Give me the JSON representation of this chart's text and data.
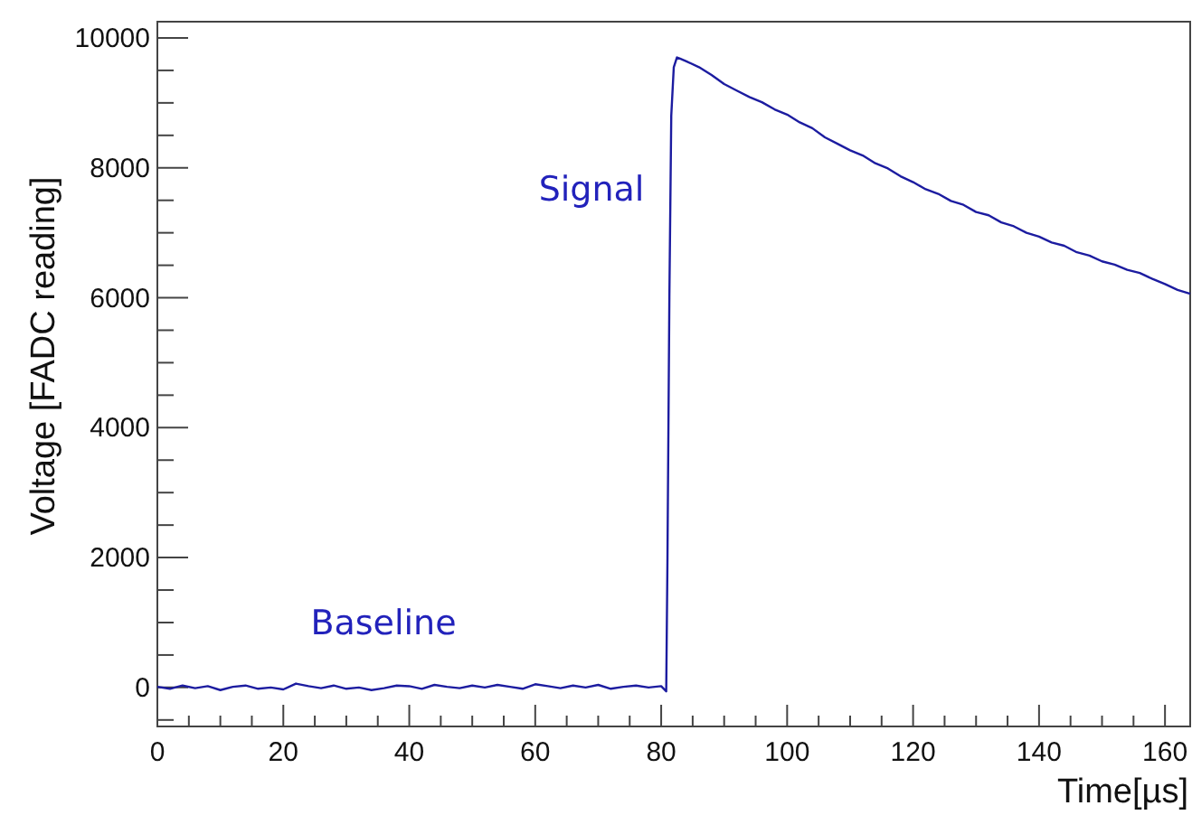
{
  "chart_data": {
    "type": "line",
    "xlabel": "Time[µs]",
    "ylabel": "Voltage [FADC reading]",
    "xlim": [
      0,
      164
    ],
    "ylim": [
      -600,
      10250
    ],
    "xticks": [
      0,
      {
        "value": 5,
        "label": null
      },
      {
        "value": 10,
        "label": null
      },
      {
        "value": 15,
        "label": null
      },
      20,
      {
        "value": 25,
        "label": null
      },
      {
        "value": 30,
        "label": null
      },
      {
        "value": 35,
        "label": null
      },
      40,
      {
        "value": 45,
        "label": null
      },
      {
        "value": 50,
        "label": null
      },
      {
        "value": 55,
        "label": null
      },
      60,
      {
        "value": 65,
        "label": null
      },
      {
        "value": 70,
        "label": null
      },
      {
        "value": 75,
        "label": null
      },
      80,
      {
        "value": 85,
        "label": null
      },
      {
        "value": 90,
        "label": null
      },
      {
        "value": 95,
        "label": null
      },
      100,
      {
        "value": 105,
        "label": null
      },
      {
        "value": 110,
        "label": null
      },
      {
        "value": 115,
        "label": null
      },
      120,
      {
        "value": 125,
        "label": null
      },
      {
        "value": 130,
        "label": null
      },
      {
        "value": 135,
        "label": null
      },
      140,
      {
        "value": 145,
        "label": null
      },
      {
        "value": 150,
        "label": null
      },
      {
        "value": 155,
        "label": null
      },
      160
    ],
    "yticks": [
      {
        "value": -500,
        "label": null
      },
      0,
      {
        "value": 500,
        "label": null
      },
      {
        "value": 1000,
        "label": null
      },
      {
        "value": 1500,
        "label": null
      },
      2000,
      {
        "value": 2500,
        "label": null
      },
      {
        "value": 3000,
        "label": null
      },
      {
        "value": 3500,
        "label": null
      },
      4000,
      {
        "value": 4500,
        "label": null
      },
      {
        "value": 5000,
        "label": null
      },
      {
        "value": 5500,
        "label": null
      },
      6000,
      {
        "value": 6500,
        "label": null
      },
      {
        "value": 7000,
        "label": null
      },
      {
        "value": 7500,
        "label": null
      },
      8000,
      {
        "value": 8500,
        "label": null
      },
      {
        "value": 9000,
        "label": null
      },
      {
        "value": 9500,
        "label": null
      },
      10000
    ],
    "grid": false,
    "marker": "none",
    "line_style": "solid",
    "annotations": [
      "Baseline",
      "Signal"
    ],
    "series": [
      {
        "color": "#1c1ca0",
        "x": [
          0,
          2,
          4,
          6,
          8,
          10,
          12,
          14,
          16,
          18,
          20,
          22,
          24,
          26,
          28,
          30,
          32,
          34,
          36,
          38,
          40,
          42,
          44,
          46,
          48,
          50,
          52,
          54,
          56,
          58,
          60,
          62,
          64,
          66,
          68,
          70,
          72,
          74,
          76,
          78,
          80,
          80.8,
          81,
          81.3,
          81.6,
          82,
          82.5,
          83,
          84,
          86,
          88,
          90,
          92,
          94,
          96,
          98,
          100,
          102,
          104,
          106,
          108,
          110,
          112,
          114,
          116,
          118,
          120,
          122,
          124,
          126,
          128,
          130,
          132,
          134,
          136,
          138,
          140,
          142,
          144,
          146,
          148,
          150,
          152,
          154,
          156,
          158,
          160,
          162,
          164
        ],
        "values": [
          10,
          -20,
          30,
          -10,
          20,
          -40,
          10,
          30,
          -20,
          0,
          -30,
          60,
          20,
          -10,
          30,
          -20,
          0,
          -40,
          -10,
          30,
          20,
          -20,
          40,
          10,
          -10,
          30,
          0,
          40,
          10,
          -20,
          50,
          20,
          -10,
          30,
          0,
          40,
          -20,
          10,
          30,
          0,
          20,
          -60,
          2000,
          6000,
          8800,
          9550,
          9700,
          9680,
          9640,
          9550,
          9430,
          9290,
          9190,
          9090,
          9010,
          8900,
          8820,
          8700,
          8610,
          8470,
          8370,
          8270,
          8190,
          8070,
          7990,
          7870,
          7780,
          7670,
          7600,
          7490,
          7430,
          7320,
          7270,
          7160,
          7100,
          7000,
          6940,
          6850,
          6800,
          6700,
          6650,
          6560,
          6510,
          6430,
          6380,
          6290,
          6210,
          6120,
          6060
        ]
      }
    ]
  }
}
